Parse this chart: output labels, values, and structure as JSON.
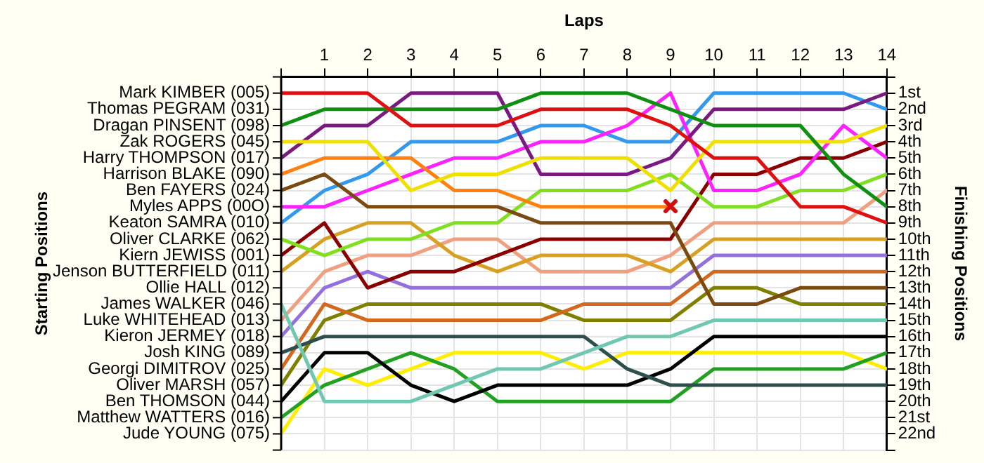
{
  "chart_data": {
    "type": "line",
    "xlabel": "Laps",
    "ylabel": "Finishing Positions",
    "xlim": [
      0,
      14
    ],
    "xticks": [
      {
        "value": 0,
        "label": null
      },
      1,
      2,
      3,
      4,
      5,
      6,
      7,
      8,
      9,
      10,
      11,
      12,
      13,
      14
    ],
    "ylim": [
      23,
      0
    ],
    "yticks": [
      {
        "value": 0,
        "label": null
      },
      {
        "value": 1,
        "label": "1st"
      },
      {
        "value": 2,
        "label": "2nd"
      },
      {
        "value": 3,
        "label": "3rd"
      },
      {
        "value": 4,
        "label": "4th"
      },
      {
        "value": 5,
        "label": "5th"
      },
      {
        "value": 6,
        "label": "6th"
      },
      {
        "value": 7,
        "label": "7th"
      },
      {
        "value": 8,
        "label": "8th"
      },
      {
        "value": 9,
        "label": "9th"
      },
      {
        "value": 10,
        "label": "10th"
      },
      {
        "value": 11,
        "label": "11th"
      },
      {
        "value": 12,
        "label": "12th"
      },
      {
        "value": 13,
        "label": "13th"
      },
      {
        "value": 14,
        "label": "14th"
      },
      {
        "value": 15,
        "label": "15th"
      },
      {
        "value": 16,
        "label": "16th"
      },
      {
        "value": 17,
        "label": "17th"
      },
      {
        "value": 18,
        "label": "18th"
      },
      {
        "value": 19,
        "label": "19th"
      },
      {
        "value": 20,
        "label": "20th"
      },
      {
        "value": 21,
        "label": "21st"
      },
      {
        "value": 22,
        "label": "22nd"
      },
      {
        "value": 23,
        "label": null
      }
    ],
    "annotations": [
      "Mark KIMBER (005)",
      "Thomas PEGRAM (031)",
      "Dragan PINSENT (098)",
      "Zak ROGERS (045)",
      "Harry THOMPSON (017)",
      "Harrison BLAKE (090)",
      "Ben FAYERS (024)",
      "Myles APPS (00O)",
      "Keaton SAMRA (010)",
      "Oliver CLARKE (062)",
      "Kiern JEWISS (001)",
      "Jenson BUTTERFIELD (011)",
      "Ollie HALL (012)",
      "James WALKER (046)",
      "Luke WHITEHEAD (013)",
      "Kieron JERMEY (018)",
      "Josh KING (089)",
      "Georgi DIMITROV (025)",
      "Oliver MARSH (057)",
      "Ben THOMSON (044)",
      "Matthew WATTERS (016)",
      "Jude YOUNG (075)",
      "Starting Positions"
    ],
    "x": [
      0,
      1,
      2,
      3,
      4,
      5,
      6,
      7,
      8,
      9,
      10,
      11,
      12,
      13,
      14
    ],
    "grid": true,
    "legend": false,
    "marker": "none",
    "line_style": "solid",
    "series": [
      {
        "color": "#e01010",
        "values": [
          1,
          1,
          1,
          3,
          3,
          3,
          2,
          2,
          2,
          3,
          5,
          5,
          8,
          8,
          9
        ]
      },
      {
        "color": "#109010",
        "values": [
          3,
          2,
          2,
          2,
          2,
          2,
          1,
          1,
          1,
          2,
          3,
          3,
          3,
          6,
          8
        ]
      },
      {
        "color": "#f0e000",
        "values": [
          4,
          4,
          4,
          7,
          6,
          6,
          5,
          5,
          5,
          7,
          4,
          4,
          4,
          4,
          3
        ]
      },
      {
        "color": "#7a1a80",
        "values": [
          5,
          3,
          3,
          1,
          1,
          1,
          6,
          6,
          6,
          5,
          2,
          2,
          2,
          2,
          1
        ]
      },
      {
        "color": "#ff8010",
        "values": [
          6,
          5,
          5,
          5,
          7,
          7,
          8,
          8,
          8,
          8,
          null,
          null,
          null,
          null,
          null
        ]
      },
      {
        "color": "#7a4a10",
        "values": [
          7,
          6,
          8,
          8,
          8,
          8,
          9,
          9,
          9,
          9,
          14,
          14,
          13,
          13,
          13
        ]
      },
      {
        "color": "#ff20ff",
        "values": [
          8,
          8,
          7,
          6,
          5,
          5,
          4,
          4,
          3,
          1,
          7,
          7,
          6,
          3,
          5
        ]
      },
      {
        "color": "#3399ee",
        "values": [
          9,
          7,
          6,
          4,
          4,
          4,
          3,
          3,
          4,
          4,
          1,
          1,
          1,
          1,
          2
        ]
      },
      {
        "color": "#80e020",
        "values": [
          10,
          11,
          10,
          10,
          9,
          9,
          7,
          7,
          7,
          6,
          8,
          8,
          7,
          7,
          6
        ]
      },
      {
        "color": "#8b0000",
        "values": [
          11,
          9,
          13,
          12,
          12,
          11,
          10,
          10,
          10,
          10,
          6,
          6,
          5,
          5,
          4
        ]
      },
      {
        "color": "#d8a020",
        "values": [
          12,
          10,
          9,
          9,
          11,
          12,
          11,
          11,
          11,
          12,
          10,
          10,
          10,
          10,
          10
        ]
      },
      {
        "color": "#70c8b0",
        "values": [
          14,
          20,
          20,
          20,
          19,
          18,
          18,
          17,
          16,
          16,
          15,
          15,
          15,
          15,
          15
        ]
      },
      {
        "color": "#f0a080",
        "values": [
          15,
          12,
          11,
          11,
          10,
          10,
          12,
          12,
          12,
          11,
          9,
          9,
          9,
          9,
          7
        ]
      },
      {
        "color": "#9370db",
        "values": [
          16,
          13,
          12,
          13,
          13,
          13,
          13,
          13,
          13,
          13,
          11,
          11,
          11,
          11,
          11
        ]
      },
      {
        "color": "#2f4f4f",
        "values": [
          17,
          16,
          16,
          16,
          16,
          16,
          16,
          16,
          18,
          19,
          19,
          19,
          19,
          19,
          19
        ]
      },
      {
        "color": "#d2691e",
        "values": [
          18,
          14,
          15,
          15,
          15,
          15,
          15,
          14,
          14,
          14,
          12,
          12,
          12,
          12,
          12
        ]
      },
      {
        "color": "#808000",
        "values": [
          19,
          15,
          14,
          14,
          14,
          14,
          14,
          15,
          15,
          15,
          13,
          13,
          14,
          14,
          14
        ]
      },
      {
        "color": "#000000",
        "values": [
          20,
          17,
          17,
          19,
          20,
          19,
          19,
          19,
          19,
          18,
          16,
          16,
          16,
          16,
          16
        ]
      },
      {
        "color": "#22a022",
        "values": [
          21,
          19,
          18,
          17,
          18,
          20,
          20,
          20,
          20,
          20,
          18,
          18,
          18,
          18,
          17
        ]
      },
      {
        "color": "#ffee00",
        "values": [
          22,
          18,
          19,
          18,
          17,
          17,
          17,
          18,
          17,
          17,
          17,
          17,
          17,
          17,
          18
        ]
      }
    ]
  }
}
